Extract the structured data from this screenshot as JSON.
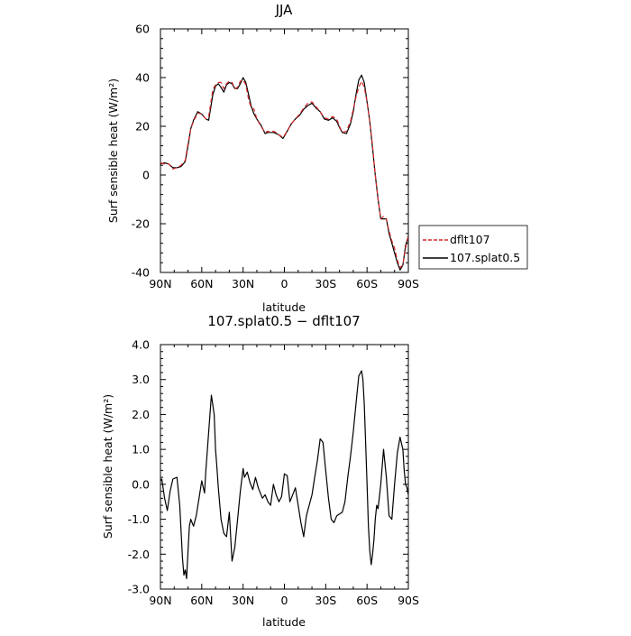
{
  "chart_data": [
    {
      "type": "line",
      "title": "JJA",
      "xlabel": "latitude",
      "ylabel": "Surf sensible heat (W/m²)",
      "ylim": [
        -40,
        60
      ],
      "xlim": [
        90,
        -90
      ],
      "x_ticks": [
        90,
        60,
        30,
        0,
        -30,
        -60,
        -90
      ],
      "x_tick_labels": [
        "90N",
        "60N",
        "30N",
        "0",
        "30S",
        "60S",
        "90S"
      ],
      "y_ticks": [
        -40,
        -20,
        0,
        20,
        40,
        60
      ],
      "y_tick_labels": [
        "-40",
        "-20",
        "0",
        "20",
        "40",
        "60"
      ],
      "legend": {
        "placement": "right-outside-bottom"
      },
      "grid": false,
      "series": [
        {
          "name": "dflt107",
          "color": "#d62728",
          "dash": "dashed",
          "x": [
            90,
            87,
            84,
            81,
            78,
            75,
            72,
            70,
            68,
            66,
            63,
            60,
            57,
            55,
            52,
            50,
            48,
            46,
            44,
            42,
            40,
            38,
            36,
            34,
            32,
            30,
            28,
            26,
            24,
            22,
            20,
            17,
            14,
            12,
            10,
            8,
            6,
            4,
            1,
            -2,
            -5,
            -8,
            -11,
            -14,
            -17,
            -20,
            -23,
            -26,
            -29,
            -32,
            -35,
            -38,
            -40,
            -42,
            -45,
            -48,
            -50,
            -52,
            -54,
            -56,
            -58,
            -60,
            -62,
            -64,
            -66,
            -68,
            -70,
            -72,
            -74,
            -76,
            -78,
            -80,
            -82,
            -84,
            -86,
            -88,
            -90
          ],
          "y": [
            5,
            4.5,
            4.5,
            2.5,
            3,
            4,
            6,
            13,
            19,
            22,
            25.5,
            25,
            23,
            24,
            35,
            37,
            38,
            38,
            35.5,
            37.5,
            38.5,
            38,
            35.5,
            36,
            38.5,
            39,
            37,
            31,
            27.5,
            27,
            23,
            20,
            17.5,
            18,
            17.5,
            18,
            17.5,
            16.5,
            15.5,
            18,
            21,
            23,
            25,
            27.5,
            29.5,
            30,
            28,
            26,
            23.5,
            23,
            24,
            23,
            20,
            17.5,
            18,
            22,
            27,
            32,
            36,
            38.5,
            36,
            30,
            22,
            12,
            0,
            -10,
            -18,
            -17,
            -18,
            -23,
            -27,
            -30,
            -35,
            -38,
            -37,
            -30,
            -25
          ]
        },
        {
          "name": "107.splat0.5",
          "color": "#000000",
          "dash": "solid",
          "x": [
            90,
            87,
            84,
            81,
            78,
            75,
            72,
            70,
            68,
            66,
            63,
            60,
            57,
            55,
            52,
            50,
            48,
            46,
            44,
            42,
            40,
            38,
            36,
            34,
            32,
            30,
            28,
            26,
            24,
            22,
            20,
            17,
            14,
            12,
            10,
            8,
            6,
            4,
            1,
            -2,
            -5,
            -8,
            -11,
            -14,
            -17,
            -20,
            -23,
            -26,
            -29,
            -32,
            -35,
            -38,
            -40,
            -42,
            -45,
            -48,
            -50,
            -52,
            -54,
            -56,
            -58,
            -60,
            -62,
            -64,
            -66,
            -68,
            -70,
            -72,
            -74,
            -76,
            -78,
            -80,
            -82,
            -84,
            -86,
            -88,
            -90
          ],
          "y": [
            4.5,
            5,
            4.5,
            3,
            3,
            3.5,
            5.5,
            12,
            19,
            22.5,
            26,
            25,
            23,
            22.5,
            33,
            36.5,
            37.5,
            36,
            34,
            37,
            38,
            37.5,
            35.5,
            35.5,
            37.5,
            40,
            38,
            33,
            28,
            25,
            23,
            20.5,
            17,
            17.5,
            17.5,
            17.5,
            17,
            16.5,
            15,
            18,
            21,
            23,
            24.5,
            27,
            28.5,
            29.5,
            27.5,
            26,
            23,
            22.5,
            23.5,
            22,
            19.5,
            17.5,
            17,
            21,
            26,
            33,
            39,
            41,
            38,
            30,
            22,
            11,
            0,
            -10,
            -18,
            -18,
            -18,
            -24,
            -28,
            -32,
            -36,
            -39,
            -37,
            -29,
            -25
          ]
        }
      ]
    },
    {
      "type": "line",
      "title": "107.splat0.5 − dflt107",
      "xlabel": "latitude",
      "ylabel": "Surf sensible heat (W/m²)",
      "ylim": [
        -3,
        4
      ],
      "xlim": [
        90,
        -90
      ],
      "x_ticks": [
        90,
        60,
        30,
        0,
        -30,
        -60,
        -90
      ],
      "x_tick_labels": [
        "90N",
        "60N",
        "30N",
        "0",
        "30S",
        "60S",
        "90S"
      ],
      "y_ticks": [
        -3,
        -2,
        -1,
        0,
        1,
        2,
        3,
        4
      ],
      "y_tick_labels": [
        "-3.0",
        "-2.0",
        "-1.0",
        "0.0",
        "1.0",
        "2.0",
        "3.0",
        "4.0"
      ],
      "grid": false,
      "series": [
        {
          "color": "#000000",
          "dash": "solid",
          "x": [
            90,
            89,
            87,
            85,
            83,
            81,
            78,
            76,
            74,
            73,
            72,
            71,
            70,
            69,
            68,
            66,
            64,
            62,
            60,
            58,
            57,
            55,
            53,
            51,
            50,
            49,
            48,
            46,
            44,
            42,
            40,
            38,
            36,
            34,
            32,
            30,
            29,
            27,
            25,
            23,
            21,
            19,
            16,
            14,
            12,
            10,
            8,
            6,
            4,
            2,
            0,
            -2,
            -4,
            -6,
            -8,
            -10,
            -12,
            -14,
            -16,
            -18,
            -20,
            -22,
            -24,
            -26,
            -28,
            -30,
            -32,
            -34,
            -36,
            -38,
            -40,
            -42,
            -44,
            -46,
            -48,
            -50,
            -52,
            -54,
            -56,
            -57,
            -58,
            -59,
            -60,
            -61,
            -62,
            -63,
            -64,
            -65,
            -66,
            -67,
            -68,
            -70,
            -72,
            -74,
            -76,
            -78,
            -79,
            -80,
            -82,
            -84,
            -86,
            -87,
            -88,
            -89,
            -90
          ],
          "y": [
            0.1,
            0.15,
            -0.4,
            -0.75,
            -0.2,
            0.15,
            0.2,
            -0.6,
            -2.1,
            -2.6,
            -2.45,
            -2.7,
            -1.9,
            -1.2,
            -1.0,
            -1.2,
            -0.9,
            -0.4,
            0.1,
            -0.25,
            0.4,
            1.5,
            2.55,
            2.0,
            1.0,
            0.5,
            -0.1,
            -1.0,
            -1.4,
            -1.5,
            -0.8,
            -2.2,
            -1.8,
            -1.0,
            -0.2,
            0.45,
            0.2,
            0.35,
            0.05,
            -0.15,
            0.2,
            -0.1,
            -0.4,
            -0.3,
            -0.5,
            -0.6,
            0.0,
            -0.3,
            -0.5,
            -0.35,
            0.3,
            0.25,
            -0.5,
            -0.3,
            -0.1,
            -0.6,
            -1.1,
            -1.5,
            -0.9,
            -0.6,
            -0.3,
            0.2,
            0.7,
            1.3,
            1.2,
            0.4,
            -0.4,
            -1.0,
            -1.1,
            -0.9,
            -0.85,
            -0.8,
            -0.5,
            0.2,
            0.8,
            1.5,
            2.3,
            3.1,
            3.25,
            3.0,
            2.3,
            1.2,
            0.0,
            -1.2,
            -1.9,
            -2.3,
            -2.0,
            -1.6,
            -1.0,
            -0.6,
            -0.7,
            0.0,
            1.0,
            0.2,
            -0.9,
            -1.0,
            -0.5,
            0.0,
            0.9,
            1.35,
            1.0,
            0.4,
            0.0,
            -0.1,
            -0.3
          ]
        }
      ]
    }
  ]
}
